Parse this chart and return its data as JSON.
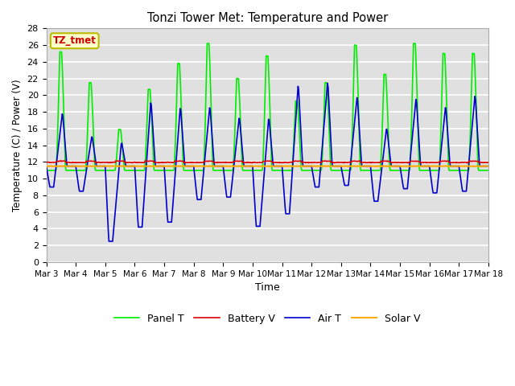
{
  "title": "Tonzi Tower Met: Temperature and Power",
  "xlabel": "Time",
  "ylabel": "Temperature (C) / Power (V)",
  "ylim": [
    0,
    28
  ],
  "yticks": [
    0,
    2,
    4,
    6,
    8,
    10,
    12,
    14,
    16,
    18,
    20,
    22,
    24,
    26,
    28
  ],
  "x_tick_labels": [
    "Mar 3",
    "Mar 4",
    "Mar 5",
    "Mar 6",
    "Mar 7",
    "Mar 8",
    "Mar 9",
    "Mar 10",
    "Mar 11",
    "Mar 12",
    "Mar 13",
    "Mar 14",
    "Mar 15",
    "Mar 16",
    "Mar 17",
    "Mar 18"
  ],
  "bg_color": "#e0e0e0",
  "grid_color": "#ffffff",
  "legend_label": "TZ_tmet",
  "panel_color": "#00ee00",
  "battery_color": "#dd0000",
  "air_color": "#0000cc",
  "solar_color": "#ffaa00",
  "panel_label": "Panel T",
  "battery_label": "Battery V",
  "air_label": "Air T",
  "solar_label": "Solar V",
  "panel_peaks": [
    25.2,
    21.5,
    15.9,
    20.7,
    23.8,
    26.2,
    22.0,
    24.7,
    19.3,
    21.5,
    26.0,
    22.5,
    26.2,
    25.0,
    25.0
  ],
  "panel_lows": [
    11.0,
    11.0,
    11.0,
    11.0,
    11.0,
    11.0,
    11.0,
    11.0,
    11.0,
    11.0,
    11.0,
    11.0,
    11.0,
    11.0,
    11.0
  ],
  "air_peaks": [
    18.0,
    15.2,
    14.5,
    19.5,
    18.8,
    18.8,
    17.5,
    17.5,
    21.5,
    21.8,
    20.0,
    16.2,
    19.8,
    18.8,
    20.2
  ],
  "air_lows": [
    9.0,
    8.5,
    2.5,
    4.2,
    4.8,
    7.5,
    7.8,
    4.3,
    5.8,
    9.0,
    9.2,
    7.3,
    8.8,
    8.3,
    8.5
  ],
  "battery_base": 12.0,
  "solar_base": 11.5
}
